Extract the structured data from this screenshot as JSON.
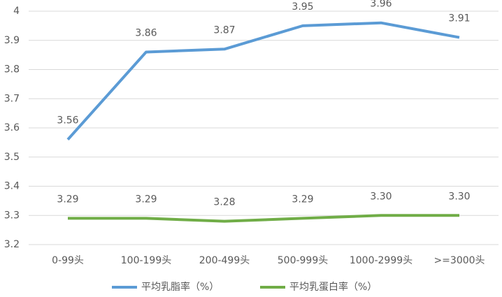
{
  "chart_data": {
    "type": "line",
    "categories": [
      "0-99头",
      "100-199头",
      "200-499头",
      "500-999头",
      "1000-2999头",
      ">=3000头"
    ],
    "series": [
      {
        "name": "平均乳脂率（%）",
        "color": "#5b9bd5",
        "values": [
          3.56,
          3.86,
          3.87,
          3.95,
          3.96,
          3.91
        ]
      },
      {
        "name": "平均乳蛋白率（%）",
        "color": "#70ad47",
        "values": [
          3.29,
          3.29,
          3.28,
          3.29,
          3.3,
          3.3
        ],
        "value_labels": [
          "3.29",
          "3.29",
          "3.28",
          "3.29",
          "3.30",
          "3.30"
        ]
      }
    ],
    "ylim": [
      3.2,
      4
    ],
    "yticks": [
      3.2,
      3.3,
      3.4,
      3.5,
      3.6,
      3.7,
      3.8,
      3.9,
      4
    ],
    "grid": true,
    "legend": "bottom"
  }
}
